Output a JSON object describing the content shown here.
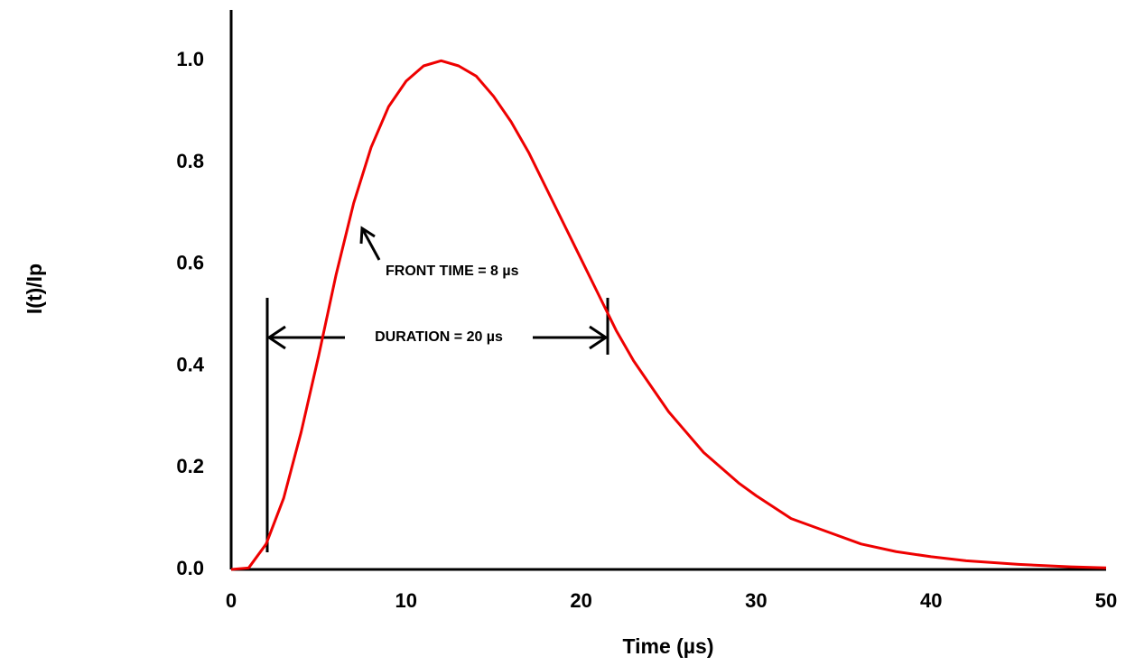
{
  "chart_data": {
    "type": "line",
    "x_label": "Time (µs)",
    "y_label": "I(t)/Ip",
    "annotations": [
      "FRONT TIME = 8 µs",
      "DURATION = 20 µs"
    ],
    "x": [
      0,
      1,
      2,
      3,
      4,
      5,
      6,
      7,
      8,
      9,
      10,
      11,
      12,
      13,
      14,
      15,
      16,
      17,
      18,
      19,
      20,
      21,
      22,
      23,
      24,
      25,
      26,
      27,
      28,
      29,
      30,
      32,
      34,
      36,
      38,
      40,
      42,
      45,
      48,
      50
    ],
    "series": [
      {
        "name": "I(t)/Ip",
        "color": "#ee0000",
        "values": [
          0,
          0.003,
          0.05,
          0.14,
          0.27,
          0.42,
          0.58,
          0.72,
          0.83,
          0.91,
          0.96,
          0.99,
          1.0,
          0.99,
          0.97,
          0.93,
          0.88,
          0.82,
          0.75,
          0.68,
          0.61,
          0.54,
          0.47,
          0.41,
          0.36,
          0.31,
          0.27,
          0.23,
          0.2,
          0.17,
          0.145,
          0.1,
          0.075,
          0.05,
          0.035,
          0.025,
          0.017,
          0.01,
          0.005,
          0.003
        ]
      }
    ],
    "xlim": [
      0,
      50
    ],
    "ylim": [
      0,
      1.1
    ],
    "xticks": [
      0,
      10,
      20,
      30,
      40,
      50
    ],
    "yticks": [
      {
        "value": 0,
        "label": "0.0"
      },
      {
        "value": 0.2,
        "label": "0.2"
      },
      {
        "value": 0.4,
        "label": "0.4"
      },
      {
        "value": 0.6,
        "label": "0.6"
      },
      {
        "value": 0.8,
        "label": "0.8"
      },
      {
        "value": 1.0,
        "label": "1.0"
      }
    ],
    "grid": false
  }
}
